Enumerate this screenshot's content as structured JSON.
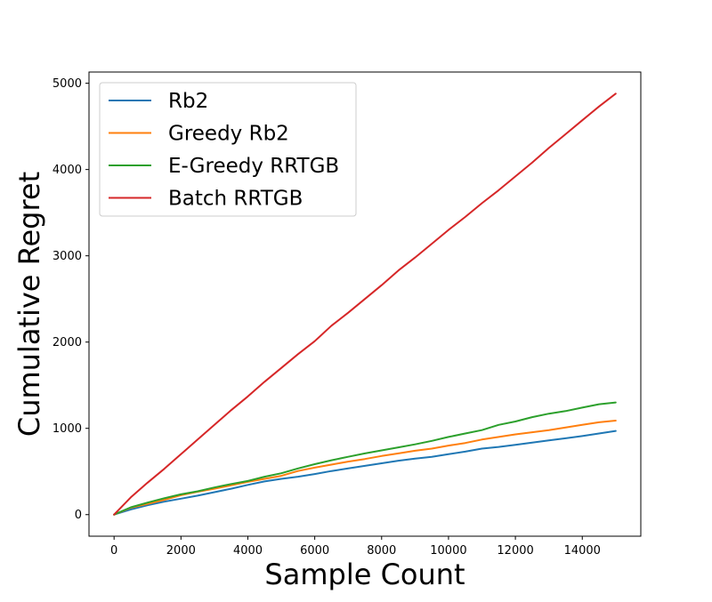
{
  "chart_data": {
    "type": "line",
    "title": "",
    "xlabel": "Sample Count",
    "ylabel": "Cumulative Regret",
    "xlim": [
      -750,
      15750
    ],
    "ylim": [
      -250,
      5130
    ],
    "xticks": [
      0,
      2000,
      4000,
      6000,
      8000,
      10000,
      12000,
      14000
    ],
    "yticks": [
      0,
      1000,
      2000,
      3000,
      4000,
      5000
    ],
    "grid": false,
    "legend_position": "top-left",
    "x": [
      0,
      500,
      1000,
      1500,
      2000,
      2500,
      3000,
      3500,
      4000,
      4500,
      5000,
      5500,
      6000,
      6500,
      7000,
      7500,
      8000,
      8500,
      9000,
      9500,
      10000,
      10500,
      11000,
      11500,
      12000,
      12500,
      13000,
      13500,
      14000,
      14500,
      15000
    ],
    "series": [
      {
        "name": "Rb2",
        "color": "#1f77b4",
        "values": [
          0,
          60,
          110,
          150,
          185,
          220,
          260,
          300,
          345,
          385,
          415,
          440,
          470,
          505,
          535,
          565,
          595,
          625,
          650,
          670,
          700,
          730,
          765,
          785,
          810,
          835,
          860,
          885,
          910,
          940,
          970
        ]
      },
      {
        "name": "Greedy Rb2",
        "color": "#ff7f0e",
        "values": [
          0,
          80,
          125,
          170,
          225,
          265,
          300,
          340,
          380,
          415,
          450,
          505,
          545,
          580,
          615,
          645,
          680,
          710,
          740,
          765,
          800,
          830,
          870,
          900,
          930,
          955,
          980,
          1010,
          1040,
          1070,
          1090
        ]
      },
      {
        "name": "E-Greedy RRTGB",
        "color": "#2ca02c",
        "values": [
          0,
          85,
          140,
          190,
          235,
          270,
          315,
          355,
          390,
          440,
          480,
          535,
          585,
          630,
          670,
          710,
          745,
          780,
          815,
          855,
          900,
          940,
          980,
          1040,
          1080,
          1130,
          1170,
          1200,
          1240,
          1280,
          1300
        ]
      },
      {
        "name": "Batch RRTGB",
        "color": "#d62728",
        "values": [
          0,
          200,
          370,
          530,
          700,
          870,
          1040,
          1210,
          1370,
          1540,
          1700,
          1860,
          2010,
          2190,
          2340,
          2500,
          2660,
          2830,
          2980,
          3140,
          3300,
          3450,
          3610,
          3760,
          3920,
          4080,
          4250,
          4410,
          4570,
          4730,
          4880
        ]
      }
    ]
  }
}
